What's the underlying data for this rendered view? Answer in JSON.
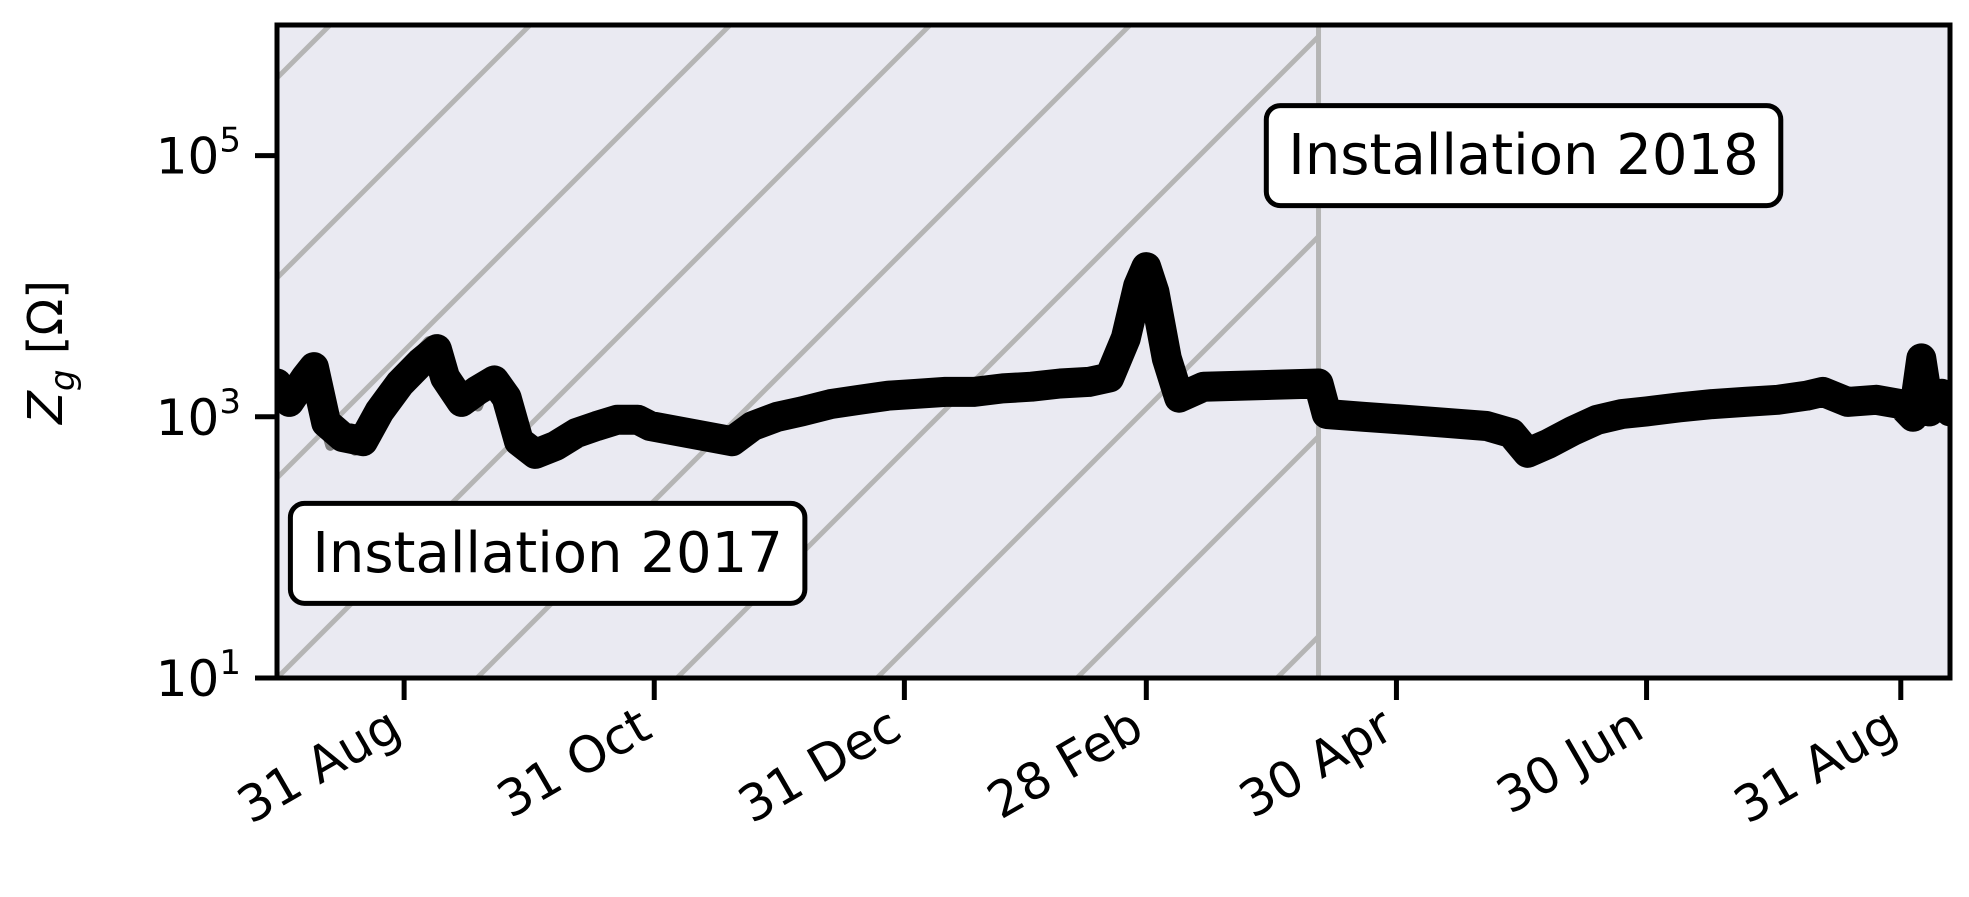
{
  "chart_data": {
    "type": "line",
    "ylabel_main": "Z",
    "ylabel_sub": "g",
    "ylabel_unit": " [Ω]",
    "y_scale": "log",
    "ylim": [
      10,
      1000000
    ],
    "y_ticks": [
      {
        "value": 10,
        "base": "10",
        "exp": "1"
      },
      {
        "value": 1000,
        "base": "10",
        "exp": "3"
      },
      {
        "value": 100000,
        "base": "10",
        "exp": "5"
      }
    ],
    "xlim": [
      "2017-07-31",
      "2018-09-12"
    ],
    "x_ticks": [
      {
        "date": "2017-08-31",
        "label": "31 Aug"
      },
      {
        "date": "2017-10-31",
        "label": "31 Oct"
      },
      {
        "date": "2017-12-31",
        "label": "31 Dec"
      },
      {
        "date": "2018-02-28",
        "label": "28 Feb"
      },
      {
        "date": "2018-04-30",
        "label": "30 Apr"
      },
      {
        "date": "2018-06-30",
        "label": "30 Jun"
      },
      {
        "date": "2018-08-31",
        "label": "31 Aug"
      }
    ],
    "boundary_date": "2018-04-11",
    "hatched_region": [
      "2017-07-31",
      "2018-04-11"
    ],
    "annotations": [
      {
        "text": "Installation 2017",
        "date": "2017-10-05",
        "value": 90
      },
      {
        "text": "Installation 2018",
        "date": "2018-05-31",
        "value": 100000
      }
    ],
    "colors": {
      "background": "#eaeaf2",
      "raw_series": "#808080",
      "smoothed_series": "#000000",
      "hatch": "#b5b5b5"
    },
    "series": [
      {
        "role": "raw",
        "points": [
          [
            "2017-07-31",
            2000
          ],
          [
            "2017-08-03",
            1300
          ],
          [
            "2017-08-06",
            2200
          ],
          [
            "2017-08-09",
            2800
          ],
          [
            "2017-08-11",
            1000
          ],
          [
            "2017-08-13",
            600
          ],
          [
            "2017-08-16",
            800
          ],
          [
            "2017-08-19",
            550
          ],
          [
            "2017-08-22",
            800
          ],
          [
            "2017-08-25",
            1200
          ],
          [
            "2017-08-28",
            1700
          ],
          [
            "2017-08-31",
            2300
          ],
          [
            "2017-09-03",
            3000
          ],
          [
            "2017-09-06",
            3800
          ],
          [
            "2017-09-09",
            2000
          ],
          [
            "2017-09-12",
            1300
          ],
          [
            "2017-09-15",
            1600
          ],
          [
            "2017-09-18",
            1200
          ],
          [
            "2017-09-21",
            2100
          ],
          [
            "2017-09-24",
            1500
          ],
          [
            "2017-09-27",
            700
          ],
          [
            "2017-09-30",
            550
          ],
          [
            "2017-10-03",
            500
          ],
          [
            "2017-10-06",
            650
          ],
          [
            "2017-10-09",
            750
          ],
          [
            "2017-10-12",
            800
          ],
          [
            "2017-10-15",
            900
          ],
          [
            "2017-10-18",
            950
          ],
          [
            "2017-10-21",
            1000
          ],
          [
            "2017-10-24",
            950
          ],
          [
            "2017-10-27",
            1000
          ],
          [
            "2017-10-30",
            900
          ],
          [
            "2017-11-10",
            700
          ],
          [
            "2017-11-18",
            600
          ],
          [
            "2017-11-21",
            700
          ],
          [
            "2017-11-24",
            900
          ],
          [
            "2017-11-28",
            1000
          ],
          [
            "2017-12-03",
            1100
          ],
          [
            "2017-12-08",
            1200
          ],
          [
            "2017-12-13",
            1300
          ],
          [
            "2017-12-18",
            1400
          ],
          [
            "2017-12-23",
            1450
          ],
          [
            "2017-12-28",
            1500
          ],
          [
            "2018-01-02",
            1500
          ],
          [
            "2018-01-07",
            1550
          ],
          [
            "2018-01-12",
            1600
          ],
          [
            "2018-01-17",
            1600
          ],
          [
            "2018-01-22",
            1650
          ],
          [
            "2018-01-27",
            1700
          ],
          [
            "2018-02-01",
            1750
          ],
          [
            "2018-02-06",
            1800
          ],
          [
            "2018-02-11",
            1850
          ],
          [
            "2018-02-16",
            1900
          ],
          [
            "2018-02-20",
            2300
          ],
          [
            "2018-02-23",
            5000
          ],
          [
            "2018-02-26",
            12000
          ],
          [
            "2018-02-28",
            16000
          ],
          [
            "2018-03-02",
            10000
          ],
          [
            "2018-03-04",
            4000
          ],
          [
            "2018-03-06",
            2200
          ],
          [
            "2018-03-09",
            1600
          ],
          [
            "2018-03-14",
            1800
          ],
          [
            "2018-04-11",
            1600
          ],
          [
            "2018-04-12",
            1050
          ],
          [
            "2018-04-20",
            1000
          ],
          [
            "2018-04-30",
            950
          ],
          [
            "2018-05-10",
            900
          ],
          [
            "2018-05-20",
            850
          ],
          [
            "2018-05-28",
            750
          ],
          [
            "2018-06-01",
            550
          ],
          [
            "2018-06-05",
            600
          ],
          [
            "2018-06-10",
            750
          ],
          [
            "2018-06-15",
            900
          ],
          [
            "2018-06-20",
            1000
          ],
          [
            "2018-06-25",
            1100
          ],
          [
            "2018-06-30",
            1150
          ],
          [
            "2018-07-07",
            1200
          ],
          [
            "2018-07-14",
            1250
          ],
          [
            "2018-07-21",
            1300
          ],
          [
            "2018-07-28",
            1350
          ],
          [
            "2018-08-05",
            1400
          ],
          [
            "2018-08-12",
            1500
          ],
          [
            "2018-08-18",
            1300
          ],
          [
            "2018-08-25",
            1400
          ],
          [
            "2018-08-31",
            1300
          ],
          [
            "2018-09-02",
            1100
          ],
          [
            "2018-09-04",
            2800
          ],
          [
            "2018-09-06",
            1000
          ],
          [
            "2018-09-08",
            1600
          ],
          [
            "2018-09-12",
            1200
          ]
        ]
      },
      {
        "role": "smoothed",
        "points": [
          [
            "2017-07-31",
            1800
          ],
          [
            "2017-08-03",
            1300
          ],
          [
            "2017-08-07",
            2000
          ],
          [
            "2017-08-09",
            2400
          ],
          [
            "2017-08-12",
            900
          ],
          [
            "2017-08-16",
            700
          ],
          [
            "2017-08-21",
            650
          ],
          [
            "2017-08-25",
            1100
          ],
          [
            "2017-08-30",
            1800
          ],
          [
            "2017-09-04",
            2600
          ],
          [
            "2017-09-08",
            3300
          ],
          [
            "2017-09-10",
            2000
          ],
          [
            "2017-09-14",
            1300
          ],
          [
            "2017-09-18",
            1600
          ],
          [
            "2017-09-22",
            1900
          ],
          [
            "2017-09-25",
            1400
          ],
          [
            "2017-09-28",
            650
          ],
          [
            "2017-10-02",
            520
          ],
          [
            "2017-10-07",
            600
          ],
          [
            "2017-10-12",
            750
          ],
          [
            "2017-10-17",
            850
          ],
          [
            "2017-10-22",
            950
          ],
          [
            "2017-10-27",
            950
          ],
          [
            "2017-10-30",
            850
          ],
          [
            "2017-11-19",
            650
          ],
          [
            "2017-11-24",
            850
          ],
          [
            "2017-11-30",
            1000
          ],
          [
            "2017-12-06",
            1100
          ],
          [
            "2017-12-13",
            1250
          ],
          [
            "2017-12-20",
            1350
          ],
          [
            "2017-12-27",
            1450
          ],
          [
            "2018-01-03",
            1500
          ],
          [
            "2018-01-10",
            1550
          ],
          [
            "2018-01-17",
            1550
          ],
          [
            "2018-01-24",
            1650
          ],
          [
            "2018-01-31",
            1700
          ],
          [
            "2018-02-07",
            1800
          ],
          [
            "2018-02-14",
            1850
          ],
          [
            "2018-02-19",
            2000
          ],
          [
            "2018-02-23",
            4000
          ],
          [
            "2018-02-26",
            10000
          ],
          [
            "2018-02-28",
            14000
          ],
          [
            "2018-03-02",
            9000
          ],
          [
            "2018-03-05",
            2800
          ],
          [
            "2018-03-08",
            1400
          ],
          [
            "2018-03-14",
            1700
          ],
          [
            "2018-04-11",
            1800
          ],
          [
            "2018-04-13",
            1050
          ],
          [
            "2018-04-22",
            1000
          ],
          [
            "2018-05-02",
            950
          ],
          [
            "2018-05-12",
            900
          ],
          [
            "2018-05-22",
            850
          ],
          [
            "2018-05-28",
            750
          ],
          [
            "2018-06-01",
            530
          ],
          [
            "2018-06-06",
            620
          ],
          [
            "2018-06-12",
            780
          ],
          [
            "2018-06-18",
            950
          ],
          [
            "2018-06-24",
            1050
          ],
          [
            "2018-06-30",
            1100
          ],
          [
            "2018-07-08",
            1180
          ],
          [
            "2018-07-16",
            1250
          ],
          [
            "2018-07-24",
            1300
          ],
          [
            "2018-08-01",
            1350
          ],
          [
            "2018-08-08",
            1450
          ],
          [
            "2018-08-12",
            1550
          ],
          [
            "2018-08-18",
            1300
          ],
          [
            "2018-08-25",
            1350
          ],
          [
            "2018-08-31",
            1250
          ],
          [
            "2018-09-03",
            1000
          ],
          [
            "2018-09-05",
            2800
          ],
          [
            "2018-09-07",
            1100
          ],
          [
            "2018-09-10",
            1500
          ],
          [
            "2018-09-12",
            1100
          ]
        ]
      }
    ]
  }
}
